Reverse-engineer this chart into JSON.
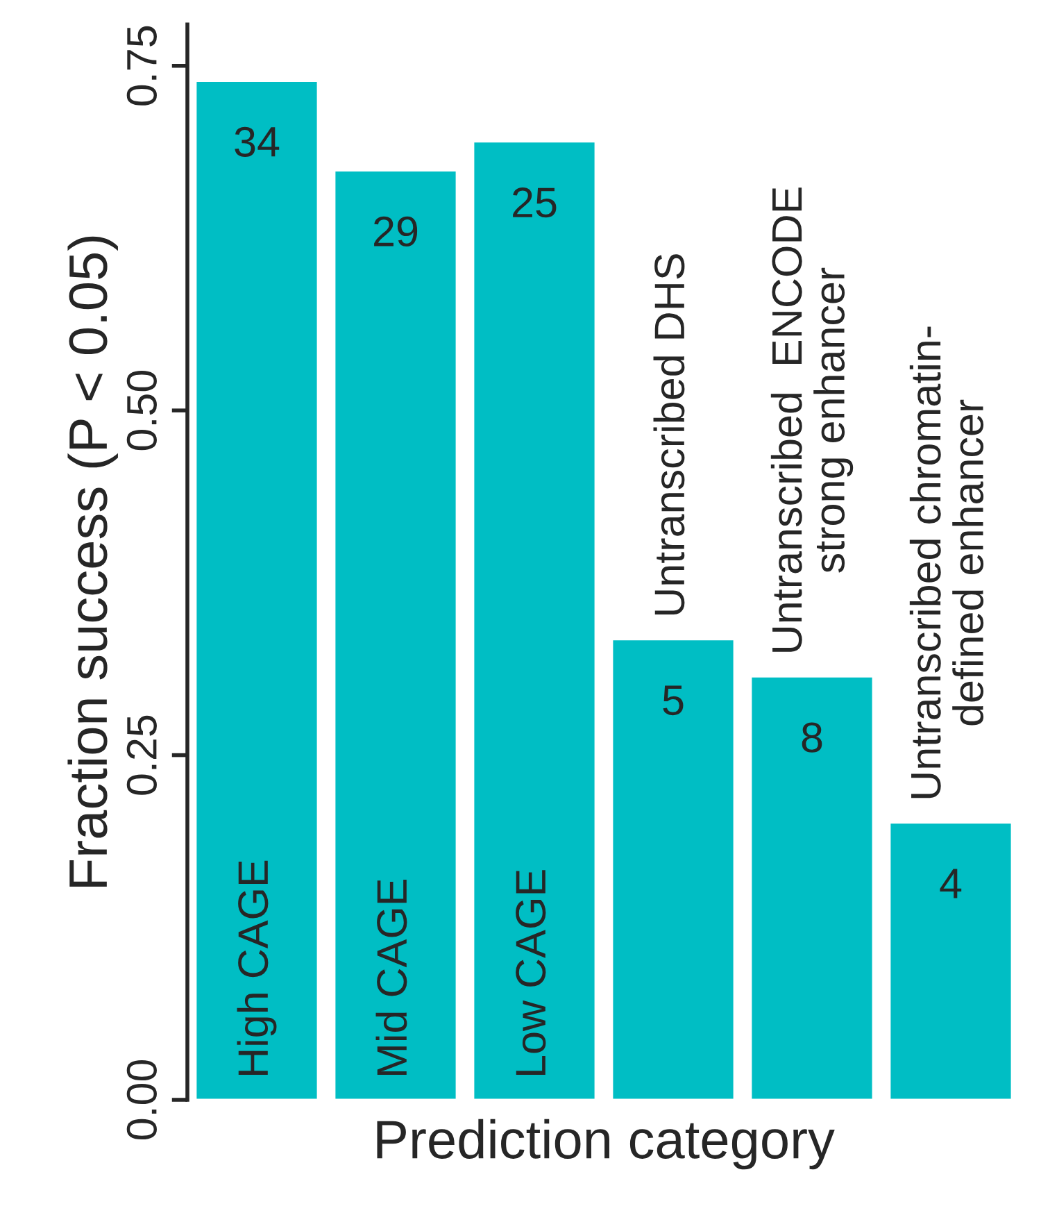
{
  "chart_data": {
    "type": "bar",
    "xlabel": "Prediction category",
    "ylabel": "Fraction success (P < 0.05)",
    "categories": [
      "High CAGE",
      "Mid CAGE",
      "Low CAGE",
      "Untranscribed DHS",
      "Untranscribed  ENCODE\nstrong enhancer",
      "Untranscribed chromatin-\ndefined enhancer"
    ],
    "values": [
      0.739,
      0.674,
      0.695,
      0.334,
      0.307,
      0.201
    ],
    "annotations": [
      "34",
      "29",
      "25",
      "5",
      "8",
      "4"
    ],
    "color": "#00bec4",
    "ylim": [
      0,
      0.78
    ],
    "yticks": [
      {
        "value": 0,
        "label": "0.00"
      },
      {
        "value": 0.25,
        "label": "0.25"
      },
      {
        "value": 0.5,
        "label": "0.50"
      },
      {
        "value": 0.75,
        "label": "0.75"
      }
    ],
    "grid": false
  }
}
